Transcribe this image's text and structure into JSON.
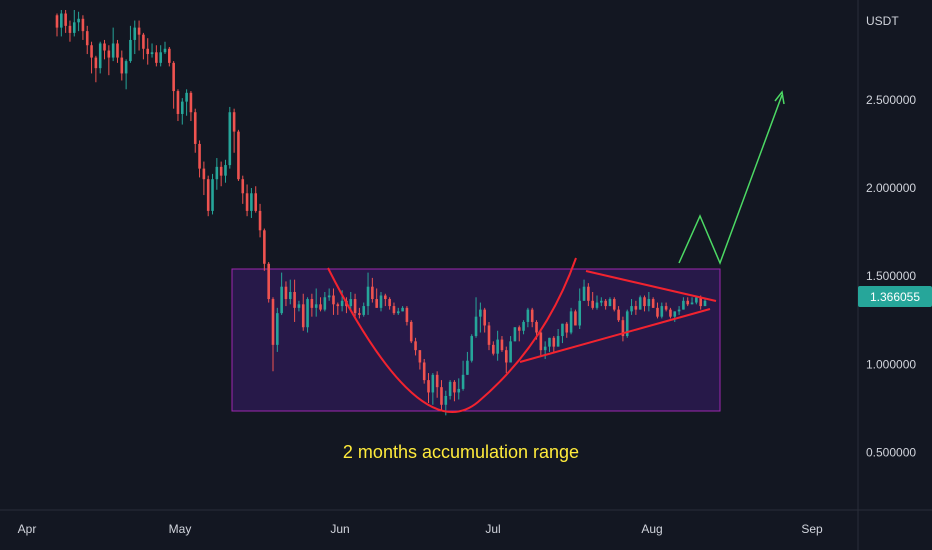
{
  "chart_data": {
    "type": "candlestick",
    "quote_currency": "USDT",
    "y_ticks": [
      {
        "value": 2.5,
        "label": "2.500000"
      },
      {
        "value": 2.0,
        "label": "2.000000"
      },
      {
        "value": 1.5,
        "label": "1.500000"
      },
      {
        "value": 1.0,
        "label": "1.000000"
      },
      {
        "value": 0.5,
        "label": "0.500000"
      }
    ],
    "x_ticks": [
      "Apr",
      "May",
      "Jun",
      "Jul",
      "Aug",
      "Sep"
    ],
    "current_price": {
      "value": 1.366055,
      "label": "1.366055"
    },
    "candles": [
      [
        2.98,
        2.91,
        2.99,
        2.86
      ],
      [
        2.91,
        2.99,
        3.01,
        2.86
      ],
      [
        2.99,
        2.92,
        3.01,
        2.88
      ],
      [
        2.92,
        2.88,
        2.95,
        2.83
      ],
      [
        2.88,
        2.94,
        3.01,
        2.86
      ],
      [
        2.94,
        2.96,
        3.0,
        2.89
      ],
      [
        2.96,
        2.89,
        2.98,
        2.84
      ],
      [
        2.89,
        2.81,
        2.92,
        2.76
      ],
      [
        2.81,
        2.74,
        2.83,
        2.65
      ],
      [
        2.74,
        2.68,
        2.75,
        2.6
      ],
      [
        2.68,
        2.82,
        2.83,
        2.65
      ],
      [
        2.82,
        2.78,
        2.84,
        2.73
      ],
      [
        2.78,
        2.74,
        2.81,
        2.64
      ],
      [
        2.74,
        2.82,
        2.91,
        2.72
      ],
      [
        2.82,
        2.74,
        2.84,
        2.71
      ],
      [
        2.74,
        2.65,
        2.78,
        2.61
      ],
      [
        2.65,
        2.72,
        2.73,
        2.56
      ],
      [
        2.72,
        2.84,
        2.92,
        2.71
      ],
      [
        2.84,
        2.91,
        2.95,
        2.76
      ],
      [
        2.91,
        2.87,
        2.95,
        2.78
      ],
      [
        2.87,
        2.79,
        2.88,
        2.73
      ],
      [
        2.79,
        2.76,
        2.85,
        2.7
      ],
      [
        2.76,
        2.77,
        2.82,
        2.74
      ],
      [
        2.77,
        2.71,
        2.81,
        2.69
      ],
      [
        2.71,
        2.77,
        2.81,
        2.69
      ],
      [
        2.77,
        2.79,
        2.83,
        2.76
      ],
      [
        2.79,
        2.71,
        2.8,
        2.69
      ],
      [
        2.71,
        2.55,
        2.72,
        2.45
      ],
      [
        2.55,
        2.42,
        2.56,
        2.38
      ],
      [
        2.42,
        2.49,
        2.51,
        2.36
      ],
      [
        2.49,
        2.54,
        2.56,
        2.41
      ],
      [
        2.54,
        2.43,
        2.55,
        2.38
      ],
      [
        2.43,
        2.25,
        2.45,
        2.2
      ],
      [
        2.25,
        2.11,
        2.27,
        2.06
      ],
      [
        2.11,
        2.05,
        2.15,
        1.96
      ],
      [
        2.05,
        1.87,
        2.07,
        1.84
      ],
      [
        1.87,
        2.05,
        2.08,
        1.85
      ],
      [
        2.05,
        2.12,
        2.17,
        1.99
      ],
      [
        2.12,
        2.07,
        2.15,
        2.01
      ],
      [
        2.07,
        2.13,
        2.16,
        2.03
      ],
      [
        2.13,
        2.43,
        2.46,
        2.11
      ],
      [
        2.43,
        2.32,
        2.45,
        2.2
      ],
      [
        2.32,
        2.05,
        2.33,
        2.04
      ],
      [
        2.05,
        1.97,
        2.07,
        1.91
      ],
      [
        1.97,
        1.87,
        2.02,
        1.84
      ],
      [
        1.87,
        1.97,
        2.0,
        1.83
      ],
      [
        1.97,
        1.87,
        2.01,
        1.86
      ],
      [
        1.87,
        1.76,
        1.91,
        1.72
      ],
      [
        1.76,
        1.57,
        1.77,
        1.53
      ],
      [
        1.57,
        1.37,
        1.58,
        1.35
      ],
      [
        1.37,
        1.11,
        1.38,
        0.96
      ],
      [
        1.11,
        1.29,
        1.32,
        1.07
      ],
      [
        1.29,
        1.44,
        1.52,
        1.28
      ],
      [
        1.44,
        1.37,
        1.47,
        1.33
      ],
      [
        1.37,
        1.41,
        1.48,
        1.34
      ],
      [
        1.41,
        1.32,
        1.48,
        1.24
      ],
      [
        1.32,
        1.34,
        1.36,
        1.3
      ],
      [
        1.34,
        1.21,
        1.4,
        1.19
      ],
      [
        1.21,
        1.37,
        1.38,
        1.18
      ],
      [
        1.37,
        1.32,
        1.4,
        1.27
      ],
      [
        1.32,
        1.34,
        1.43,
        1.27
      ],
      [
        1.34,
        1.31,
        1.38,
        1.3
      ],
      [
        1.31,
        1.38,
        1.41,
        1.3
      ],
      [
        1.38,
        1.39,
        1.43,
        1.36
      ],
      [
        1.39,
        1.34,
        1.43,
        1.28
      ],
      [
        1.34,
        1.33,
        1.35,
        1.28
      ],
      [
        1.33,
        1.36,
        1.42,
        1.3
      ],
      [
        1.36,
        1.33,
        1.38,
        1.29
      ],
      [
        1.33,
        1.37,
        1.41,
        1.31
      ],
      [
        1.37,
        1.29,
        1.4,
        1.27
      ],
      [
        1.29,
        1.28,
        1.32,
        1.26
      ],
      [
        1.28,
        1.33,
        1.35,
        1.27
      ],
      [
        1.33,
        1.44,
        1.52,
        1.28
      ],
      [
        1.44,
        1.37,
        1.49,
        1.35
      ],
      [
        1.37,
        1.32,
        1.43,
        1.32
      ],
      [
        1.32,
        1.39,
        1.41,
        1.3
      ],
      [
        1.39,
        1.37,
        1.4,
        1.33
      ],
      [
        1.37,
        1.33,
        1.38,
        1.31
      ],
      [
        1.33,
        1.29,
        1.35,
        1.28
      ],
      [
        1.29,
        1.3,
        1.32,
        1.28
      ],
      [
        1.3,
        1.32,
        1.33,
        1.3
      ],
      [
        1.32,
        1.24,
        1.33,
        1.22
      ],
      [
        1.24,
        1.13,
        1.25,
        1.12
      ],
      [
        1.13,
        1.08,
        1.15,
        1.05
      ],
      [
        1.08,
        1.01,
        1.08,
        0.97
      ],
      [
        1.01,
        0.91,
        1.03,
        0.89
      ],
      [
        0.91,
        0.84,
        0.95,
        0.78
      ],
      [
        0.84,
        0.94,
        0.95,
        0.77
      ],
      [
        0.94,
        0.87,
        0.96,
        0.81
      ],
      [
        0.87,
        0.77,
        0.91,
        0.74
      ],
      [
        0.77,
        0.82,
        0.85,
        0.71
      ],
      [
        0.82,
        0.9,
        0.91,
        0.8
      ],
      [
        0.9,
        0.84,
        0.91,
        0.79
      ],
      [
        0.84,
        0.86,
        0.92,
        0.8
      ],
      [
        0.86,
        0.94,
        1.02,
        0.85
      ],
      [
        0.94,
        1.02,
        1.07,
        0.94
      ],
      [
        1.02,
        1.16,
        1.17,
        1.01
      ],
      [
        1.16,
        1.27,
        1.38,
        1.15
      ],
      [
        1.27,
        1.31,
        1.35,
        1.18
      ],
      [
        1.31,
        1.22,
        1.32,
        1.18
      ],
      [
        1.22,
        1.11,
        1.24,
        1.08
      ],
      [
        1.11,
        1.06,
        1.13,
        1.05
      ],
      [
        1.06,
        1.14,
        1.19,
        1.02
      ],
      [
        1.14,
        1.08,
        1.16,
        1.07
      ],
      [
        1.08,
        1.01,
        1.1,
        0.95
      ],
      [
        1.01,
        1.13,
        1.16,
        1.01
      ],
      [
        1.13,
        1.21,
        1.21,
        1.13
      ],
      [
        1.21,
        1.19,
        1.22,
        1.13
      ],
      [
        1.19,
        1.24,
        1.25,
        1.17
      ],
      [
        1.24,
        1.31,
        1.32,
        1.21
      ],
      [
        1.31,
        1.24,
        1.32,
        1.21
      ],
      [
        1.24,
        1.18,
        1.25,
        1.14
      ],
      [
        1.18,
        1.08,
        1.19,
        1.05
      ],
      [
        1.08,
        1.1,
        1.13,
        1.03
      ],
      [
        1.1,
        1.15,
        1.15,
        1.07
      ],
      [
        1.15,
        1.1,
        1.16,
        1.07
      ],
      [
        1.1,
        1.16,
        1.2,
        1.1
      ],
      [
        1.16,
        1.23,
        1.23,
        1.12
      ],
      [
        1.23,
        1.18,
        1.24,
        1.15
      ],
      [
        1.18,
        1.3,
        1.32,
        1.17
      ],
      [
        1.3,
        1.22,
        1.31,
        1.22
      ],
      [
        1.22,
        1.36,
        1.43,
        1.2
      ],
      [
        1.36,
        1.44,
        1.48,
        1.36
      ],
      [
        1.44,
        1.36,
        1.46,
        1.33
      ],
      [
        1.36,
        1.32,
        1.41,
        1.31
      ],
      [
        1.32,
        1.35,
        1.39,
        1.31
      ],
      [
        1.35,
        1.36,
        1.38,
        1.33
      ],
      [
        1.36,
        1.33,
        1.37,
        1.31
      ],
      [
        1.33,
        1.37,
        1.38,
        1.33
      ],
      [
        1.37,
        1.31,
        1.38,
        1.3
      ],
      [
        1.31,
        1.25,
        1.33,
        1.24
      ],
      [
        1.25,
        1.16,
        1.27,
        1.13
      ],
      [
        1.16,
        1.3,
        1.31,
        1.15
      ],
      [
        1.3,
        1.33,
        1.37,
        1.28
      ],
      [
        1.33,
        1.31,
        1.36,
        1.28
      ],
      [
        1.31,
        1.38,
        1.39,
        1.31
      ],
      [
        1.38,
        1.33,
        1.39,
        1.3
      ],
      [
        1.33,
        1.37,
        1.41,
        1.3
      ],
      [
        1.37,
        1.32,
        1.38,
        1.32
      ],
      [
        1.32,
        1.27,
        1.35,
        1.26
      ],
      [
        1.27,
        1.33,
        1.35,
        1.26
      ],
      [
        1.33,
        1.31,
        1.35,
        1.3
      ],
      [
        1.31,
        1.27,
        1.32,
        1.26
      ],
      [
        1.27,
        1.3,
        1.3,
        1.24
      ],
      [
        1.3,
        1.31,
        1.33,
        1.28
      ],
      [
        1.31,
        1.36,
        1.38,
        1.31
      ],
      [
        1.36,
        1.34,
        1.38,
        1.33
      ],
      [
        1.34,
        1.35,
        1.38,
        1.34
      ],
      [
        1.35,
        1.38,
        1.39,
        1.34
      ],
      [
        1.38,
        1.33,
        1.39,
        1.31
      ],
      [
        1.33,
        1.36,
        1.37,
        1.33
      ]
    ],
    "annotations": {
      "range_label": "2 months accumulation range"
    },
    "colors": {
      "background": "#131722",
      "bull": "#26a69a",
      "bear": "#ef5350",
      "range_fill": "#2a1a4f",
      "range_border": "#9c27b0",
      "pattern_lines": "#f2232f",
      "projection": "#4cd964",
      "label_text": "#ffeb3b",
      "axis_text": "#d1d4dc",
      "price_tag": "#26a69a"
    }
  }
}
